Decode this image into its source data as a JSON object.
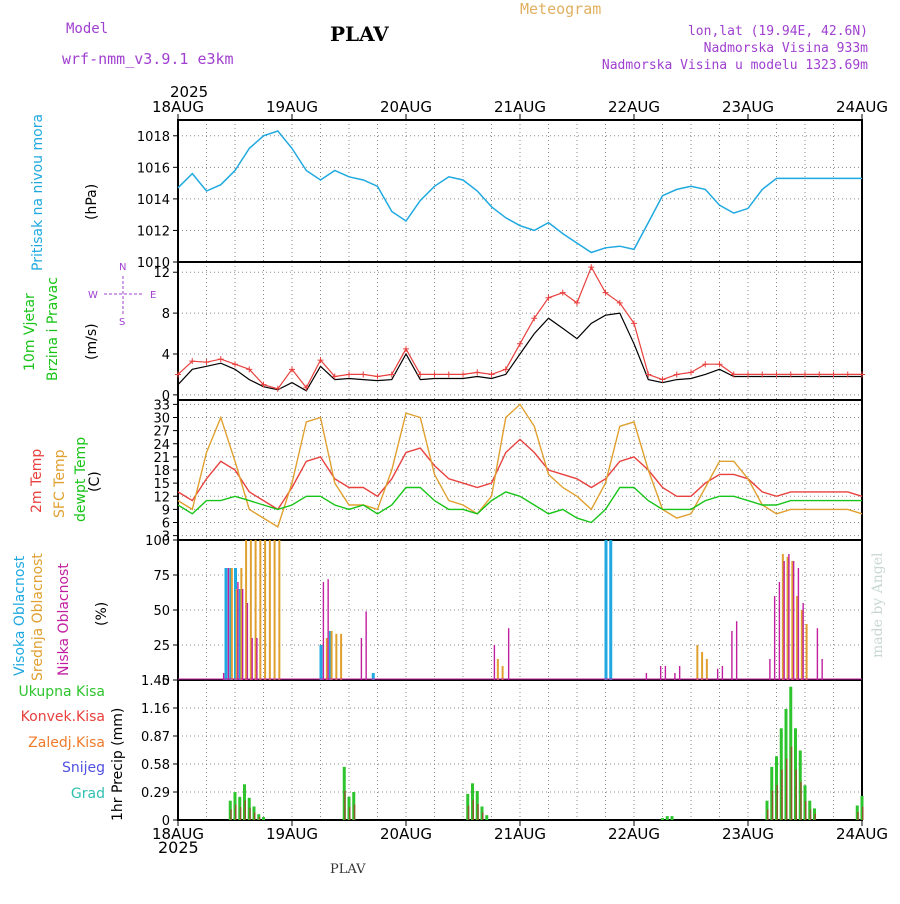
{
  "header": {
    "model_label": "Model",
    "model_name": "wrf-nmm_v3.9.1 e3km",
    "station_title": "PLAV",
    "product": "Meteogram",
    "lonlat": "lon,lat (19.94E, 42.6N)",
    "elevation": "Nadmorska Visina 933m",
    "model_elevation": "Nadmorska Visina u modelu 1323.69m",
    "footer_station": "PLAV",
    "watermark": "made by Angel"
  },
  "colors": {
    "pressure": "#1fa9e0",
    "temp2m": "#e8413e",
    "tempsfc": "#e0a030",
    "dewpt": "#18c418",
    "cloud_high": "#1fa9e0",
    "cloud_mid": "#e0a030",
    "cloud_low": "#c21fa0",
    "rain_total": "#2ec42e",
    "rain_conv": "#e8413e",
    "rain_strat": "#f07a2a",
    "snow": "#5050e0",
    "hail": "#30c0b0",
    "header_purple": "#a040d0",
    "header_gold": "#e0b060"
  },
  "time_axis": {
    "top_year": "2025",
    "bottom_year": "2025",
    "labels": [
      "18AUG",
      "19AUG",
      "20AUG",
      "21AUG",
      "22AUG",
      "23AUG",
      "24AUG"
    ]
  },
  "chart_data": [
    {
      "type": "line",
      "panel": "pressure",
      "title": "Pritisak na nivou mora",
      "ylabel": "(hPa)",
      "ylim": [
        1010,
        1019
      ],
      "yticks": [
        "1010",
        "1012",
        "1014",
        "1016",
        "1018"
      ],
      "x_hours": [
        0,
        3,
        6,
        9,
        12,
        15,
        18,
        21,
        24,
        27,
        30,
        33,
        36,
        39,
        42,
        45,
        48,
        51,
        54,
        57,
        60,
        63,
        66,
        69,
        72,
        75,
        78,
        81,
        84,
        87,
        90,
        93,
        96,
        99,
        102,
        105,
        108,
        111,
        114,
        117,
        120,
        123,
        126,
        129,
        132,
        135,
        138,
        141,
        144
      ],
      "values": [
        1014.7,
        1015.6,
        1014.5,
        1014.9,
        1015.8,
        1017.2,
        1018.0,
        1018.3,
        1017.2,
        1015.8,
        1015.2,
        1015.8,
        1015.4,
        1015.2,
        1014.8,
        1013.2,
        1012.6,
        1013.9,
        1014.8,
        1015.4,
        1015.2,
        1014.5,
        1013.5,
        1012.8,
        1012.3,
        1012.0,
        1012.5,
        1011.8,
        1011.2,
        1010.6,
        1010.9,
        1011.0,
        1010.8,
        1012.5,
        1014.2,
        1014.6,
        1014.8,
        1014.6,
        1013.6,
        1013.1,
        1013.4,
        1014.6,
        1015.3,
        1015.3,
        1015.3,
        1015.3,
        1015.3,
        1015.3,
        1015.3
      ]
    },
    {
      "type": "line",
      "panel": "wind",
      "title": "10m Vjetar",
      "title2": "Brzina i Pravac",
      "ylabel": "(m/s)",
      "ylim": [
        -0.5,
        13
      ],
      "yticks": [
        "0",
        "4",
        "8",
        "12"
      ],
      "compass": {
        "n": "N",
        "s": "S",
        "e": "E",
        "w": "W"
      },
      "x_hours": [
        0,
        3,
        6,
        9,
        12,
        15,
        18,
        21,
        24,
        27,
        30,
        33,
        36,
        39,
        42,
        45,
        48,
        51,
        54,
        57,
        60,
        63,
        66,
        69,
        72,
        75,
        78,
        81,
        84,
        87,
        90,
        93,
        96,
        99,
        102,
        105,
        108,
        111,
        114,
        117,
        120,
        123,
        126,
        129,
        132,
        135,
        138,
        141,
        144
      ],
      "speed": [
        1.0,
        2.5,
        2.8,
        3.1,
        2.5,
        1.5,
        0.8,
        0.5,
        1.2,
        0.4,
        2.8,
        1.5,
        1.6,
        1.5,
        1.4,
        1.5,
        4.0,
        1.5,
        1.6,
        1.6,
        1.6,
        1.8,
        1.6,
        2.0,
        4.0,
        6.0,
        7.5,
        6.5,
        5.5,
        7.0,
        7.8,
        8.0,
        5.0,
        1.5,
        1.2,
        1.5,
        1.6,
        2.0,
        2.5,
        1.8,
        1.8,
        1.8,
        1.8,
        1.8,
        1.8,
        1.8,
        1.8,
        1.8,
        1.8
      ],
      "gust": [
        2.0,
        3.3,
        3.2,
        3.5,
        3.0,
        2.5,
        1.0,
        0.6,
        2.5,
        0.7,
        3.4,
        1.8,
        2.0,
        2.0,
        1.8,
        2.0,
        4.5,
        2.0,
        2.0,
        2.0,
        2.0,
        2.2,
        2.0,
        2.5,
        5.0,
        7.5,
        9.5,
        10.0,
        9.0,
        12.5,
        10.0,
        9.0,
        7.0,
        2.0,
        1.5,
        2.0,
        2.2,
        3.0,
        3.0,
        2.0,
        2.0,
        2.0,
        2.0,
        2.0,
        2.0,
        2.0,
        2.0,
        2.0,
        2.0
      ]
    },
    {
      "type": "line",
      "panel": "temperature",
      "title": "2m Temp",
      "title2": "SFC Temp",
      "title3": "dewpt Temp",
      "ylabel": "(C)",
      "ylim": [
        2,
        34
      ],
      "yticks": [
        "3",
        "6",
        "9",
        "12",
        "15",
        "18",
        "21",
        "24",
        "27",
        "30",
        "33"
      ],
      "x_hours": [
        0,
        3,
        6,
        9,
        12,
        15,
        18,
        21,
        24,
        27,
        30,
        33,
        36,
        39,
        42,
        45,
        48,
        51,
        54,
        57,
        60,
        63,
        66,
        69,
        72,
        75,
        78,
        81,
        84,
        87,
        90,
        93,
        96,
        99,
        102,
        105,
        108,
        111,
        114,
        117,
        120,
        123,
        126,
        129,
        132,
        135,
        138,
        141,
        144
      ],
      "series": [
        {
          "name": "2m Temp",
          "values": [
            13,
            11,
            16,
            20,
            18,
            13,
            11,
            9,
            14,
            20,
            21,
            16,
            14,
            14,
            12,
            16,
            22,
            23,
            19,
            16,
            15,
            14,
            15,
            22,
            25,
            22,
            18,
            17,
            16,
            14,
            16,
            20,
            21,
            18,
            14,
            12,
            12,
            15,
            17,
            17,
            16,
            13,
            12,
            13,
            13,
            13,
            13,
            13,
            12
          ]
        },
        {
          "name": "SFC Temp",
          "values": [
            11,
            9,
            22,
            30,
            20,
            9,
            7,
            5,
            15,
            29,
            30,
            15,
            10,
            10,
            9,
            18,
            31,
            30,
            17,
            11,
            10,
            8,
            12,
            30,
            33,
            28,
            17,
            14,
            12,
            9,
            15,
            28,
            29,
            18,
            9,
            7,
            8,
            14,
            20,
            20,
            16,
            10,
            8,
            9,
            9,
            9,
            9,
            9,
            8
          ]
        },
        {
          "name": "dewpt Temp",
          "values": [
            10,
            8,
            11,
            11,
            12,
            11,
            10,
            9,
            10,
            12,
            12,
            10,
            9,
            10,
            8,
            10,
            14,
            14,
            11,
            9,
            9,
            8,
            11,
            13,
            12,
            10,
            8,
            9,
            7,
            6,
            9,
            14,
            14,
            11,
            9,
            9,
            9,
            11,
            12,
            12,
            11,
            10,
            10,
            11,
            11,
            11,
            11,
            11,
            11
          ]
        }
      ]
    },
    {
      "type": "bar",
      "panel": "cloud",
      "title": "Visoka Oblacnost",
      "title2": "Srednja Oblacnost",
      "title3": "Niska Oblacnost",
      "ylabel": "(%)",
      "ylim": [
        0,
        100
      ],
      "yticks": [
        "0",
        "25",
        "50",
        "75",
        "100"
      ],
      "series": [
        {
          "name": "Visoka Oblacnost",
          "hours": [
            10,
            11,
            12,
            13,
            30,
            32,
            41,
            90,
            91
          ],
          "values": [
            80,
            80,
            80,
            65,
            25,
            35,
            5,
            100,
            100
          ]
        },
        {
          "name": "Srednja Oblacnost",
          "hours": [
            11,
            12,
            13,
            14,
            15,
            16,
            17,
            18,
            19,
            20,
            21,
            31,
            32,
            33,
            34,
            67,
            68,
            109,
            110,
            111,
            127,
            128,
            129,
            130,
            131,
            132
          ],
          "values": [
            80,
            65,
            80,
            100,
            100,
            100,
            100,
            100,
            100,
            100,
            100,
            30,
            35,
            33,
            33,
            15,
            10,
            25,
            20,
            15,
            90,
            88,
            85,
            60,
            50,
            40
          ]
        },
        {
          "name": "Niska Oblacnost",
          "hours": [
            9,
            10,
            12,
            13,
            14,
            15,
            16,
            30,
            31,
            38,
            39,
            66,
            69,
            98,
            101,
            102,
            104,
            105,
            113,
            114,
            116,
            117,
            124,
            125,
            126,
            127,
            128,
            129,
            130,
            131,
            134,
            135
          ],
          "values": [
            5,
            80,
            70,
            65,
            55,
            30,
            30,
            70,
            72,
            30,
            49,
            25,
            37,
            5,
            10,
            10,
            5,
            10,
            8,
            10,
            35,
            42,
            15,
            60,
            70,
            85,
            90,
            85,
            80,
            55,
            37,
            15
          ]
        }
      ]
    },
    {
      "type": "bar",
      "panel": "precip",
      "title": "Ukupna Kisa",
      "title2": "Konvek.Kisa",
      "title3": "Zaledj.Kisa",
      "title4": "Snijeg",
      "title5": "Grad",
      "ylabel": "1hr Precip (mm)",
      "ylim": [
        0,
        1.45
      ],
      "yticks": [
        "0",
        "0.29",
        "0.58",
        "0.87",
        "1.16",
        "1.45"
      ],
      "series": [
        {
          "name": "Ukupna Kisa",
          "hours": [
            11,
            12,
            13,
            14,
            15,
            16,
            17,
            18,
            35,
            36,
            37,
            38,
            61,
            62,
            63,
            64,
            65,
            102,
            103,
            104,
            124,
            125,
            126,
            127,
            128,
            129,
            130,
            131,
            132,
            133,
            134,
            143,
            144
          ],
          "values": [
            0.2,
            0.29,
            0.24,
            0.37,
            0.23,
            0.14,
            0.06,
            0.03,
            0.55,
            0.24,
            0.29,
            0.0,
            0.27,
            0.38,
            0.3,
            0.14,
            0.05,
            0.02,
            0.04,
            0.04,
            0.2,
            0.55,
            0.66,
            0.95,
            1.15,
            1.38,
            0.95,
            0.72,
            0.36,
            0.2,
            0.12,
            0.15,
            0.25
          ]
        }
      ]
    }
  ]
}
